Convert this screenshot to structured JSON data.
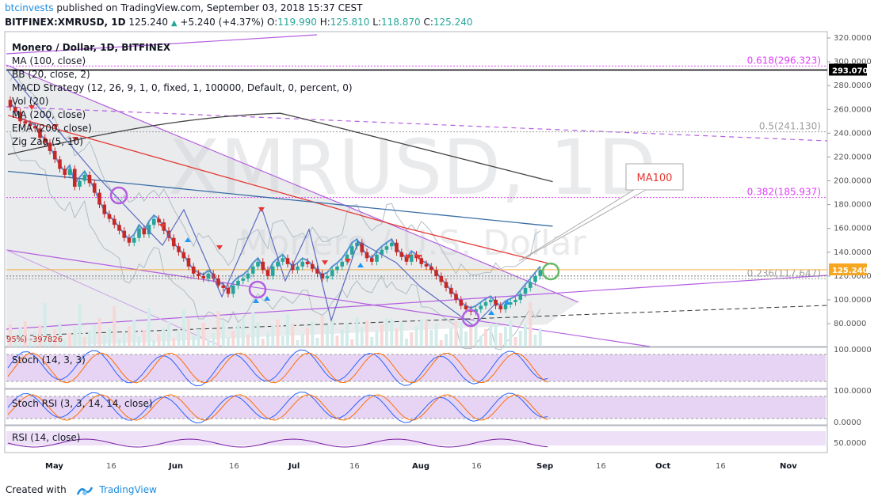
{
  "header": {
    "brand": "btcinvests",
    "published": " published on TradingView.com, September 03, 2018 15:37 CEST",
    "symbol": "BITFINEX:XMRUSD, 1D",
    "last": "125.240",
    "change_arrow": "▲",
    "change": "+5.240 (+4.37%)",
    "o_label": "O:",
    "o": "119.990",
    "h_label": "H:",
    "h": "125.810",
    "l_label": "L:",
    "l": "118.870",
    "c_label": "C:",
    "c": "125.240"
  },
  "legend": [
    "Monero / Dollar, 1D, BITFINEX",
    "MA (100, close)",
    "BB (20, close, 2)",
    "MACD Strategy (12, 26, 9, 1, 0, fixed, 1, 100000, Default, 0, percent, 0)",
    "Vol (20)",
    "MA (200, close)",
    "EMA (200, close)",
    "Zig Zag (5, 10)"
  ],
  "watermark": {
    "symbol": "XMRUSD, 1D",
    "name": "Monero / U.S. Dollar"
  },
  "annotation": {
    "ma100_callout": "MA100",
    "strategy_value": "95%) -397826"
  },
  "fib_levels": [
    {
      "label": "0.618(296.323)",
      "price": 296.323,
      "color": "#e040fb"
    },
    {
      "label": "0.5(241.130)",
      "price": 241.13,
      "color": "#9e9e9e"
    },
    {
      "label": "0.382(185.937)",
      "price": 185.937,
      "color": "#e040fb"
    },
    {
      "label": "0.236(117.647)",
      "price": 117.647,
      "color": "#9e9e9e"
    }
  ],
  "price_tags": {
    "high_line": "293.070",
    "last": "125.240"
  },
  "y_axis": {
    "ticks": [
      "320.0000",
      "300.0000",
      "280.0000",
      "260.0000",
      "240.0000",
      "220.0000",
      "200.0000",
      "180.0000",
      "160.0000",
      "140.0000",
      "120.0000",
      "100.0000",
      "80.0000"
    ],
    "min": 60,
    "max": 325
  },
  "x_axis": {
    "labels": [
      "May",
      "16",
      "Jun",
      "16",
      "Jul",
      "16",
      "Aug",
      "16",
      "Sep",
      "16",
      "Oct",
      "16",
      "Nov"
    ],
    "bold": [
      "May",
      "Jun",
      "Jul",
      "Aug",
      "Sep",
      "Oct",
      "Nov"
    ]
  },
  "subpanes": {
    "stoch": {
      "label": "Stoch (14, 3, 3)",
      "tick": "100.0000"
    },
    "stoch_rsi": {
      "label": "Stoch RSI (3, 3, 14, 14, close)",
      "tick_top": "100.0000",
      "tick_bottom": "0.0000"
    },
    "rsi": {
      "label": "RSI (14, close)",
      "tick": "50.0000"
    }
  },
  "footer": {
    "created": "Created with",
    "tv": "TradingView"
  },
  "colors": {
    "up": "#26a69a",
    "down": "#c62828",
    "ma100": "#e53935",
    "ma200": "#2962ff",
    "ema200": "#424242",
    "band": "#b0bec5",
    "zigzag": "#5c6bc0",
    "channel": "#b45ee0",
    "fill": "#e1bee7"
  },
  "chart_data": {
    "type": "candlestick",
    "title": "Monero / Dollar, 1D, BITFINEX",
    "ylim": [
      60,
      325
    ],
    "closes": [
      262,
      258,
      250,
      248,
      246,
      244,
      236,
      232,
      225,
      218,
      210,
      205,
      210,
      195,
      200,
      205,
      198,
      190,
      180,
      172,
      168,
      163,
      158,
      152,
      148,
      152,
      160,
      155,
      163,
      168,
      165,
      158,
      152,
      145,
      140,
      135,
      128,
      122,
      120,
      118,
      122,
      118,
      112,
      110,
      105,
      112,
      116,
      118,
      122,
      128,
      132,
      125,
      120,
      128,
      132,
      135,
      130,
      125,
      128,
      132,
      130,
      126,
      122,
      118,
      120,
      125,
      128,
      132,
      138,
      145,
      148,
      140,
      135,
      132,
      138,
      142,
      145,
      148,
      140,
      136,
      132,
      138,
      135,
      130,
      128,
      125,
      120,
      115,
      110,
      105,
      100,
      95,
      92,
      90,
      92,
      95,
      98,
      100,
      95,
      92,
      96,
      98,
      100,
      105,
      110,
      115,
      120,
      125
    ]
  }
}
